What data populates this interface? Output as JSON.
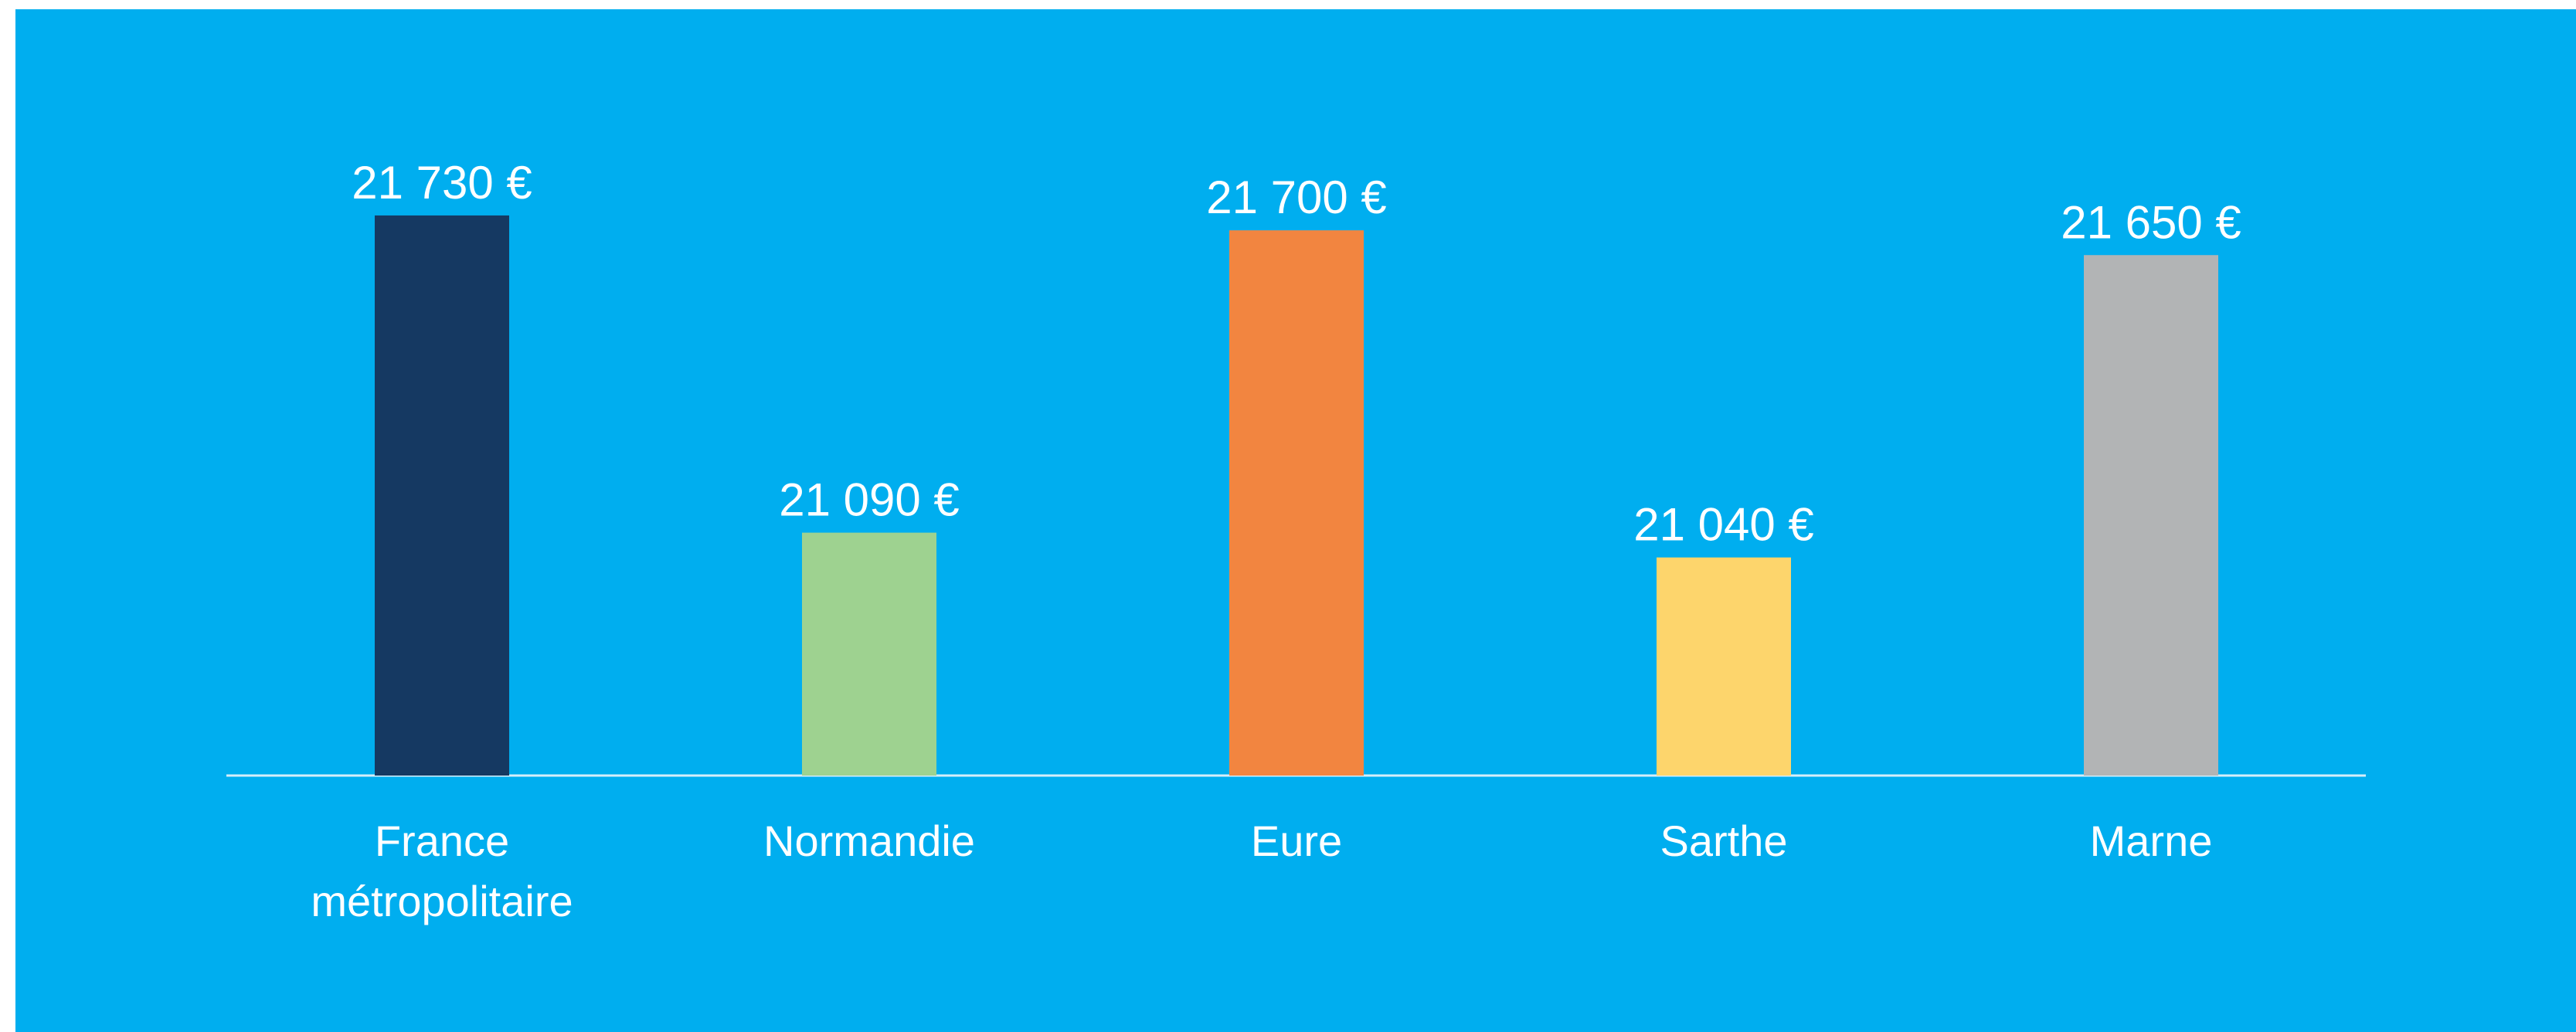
{
  "chart_data": {
    "type": "bar",
    "categories": [
      "France métropolitaire",
      "Normandie",
      "Eure",
      "Sarthe",
      "Marne"
    ],
    "values": [
      21730,
      21090,
      21700,
      21040,
      21650
    ],
    "value_labels": [
      "21 730 €",
      "21 090 €",
      "21 700 €",
      "21 040 €",
      "21 650 €"
    ],
    "colors": [
      "#153962",
      "#9ed290",
      "#f28540",
      "#fdd56c",
      "#b2b4b5"
    ],
    "ylim": [
      20600,
      21800
    ]
  }
}
